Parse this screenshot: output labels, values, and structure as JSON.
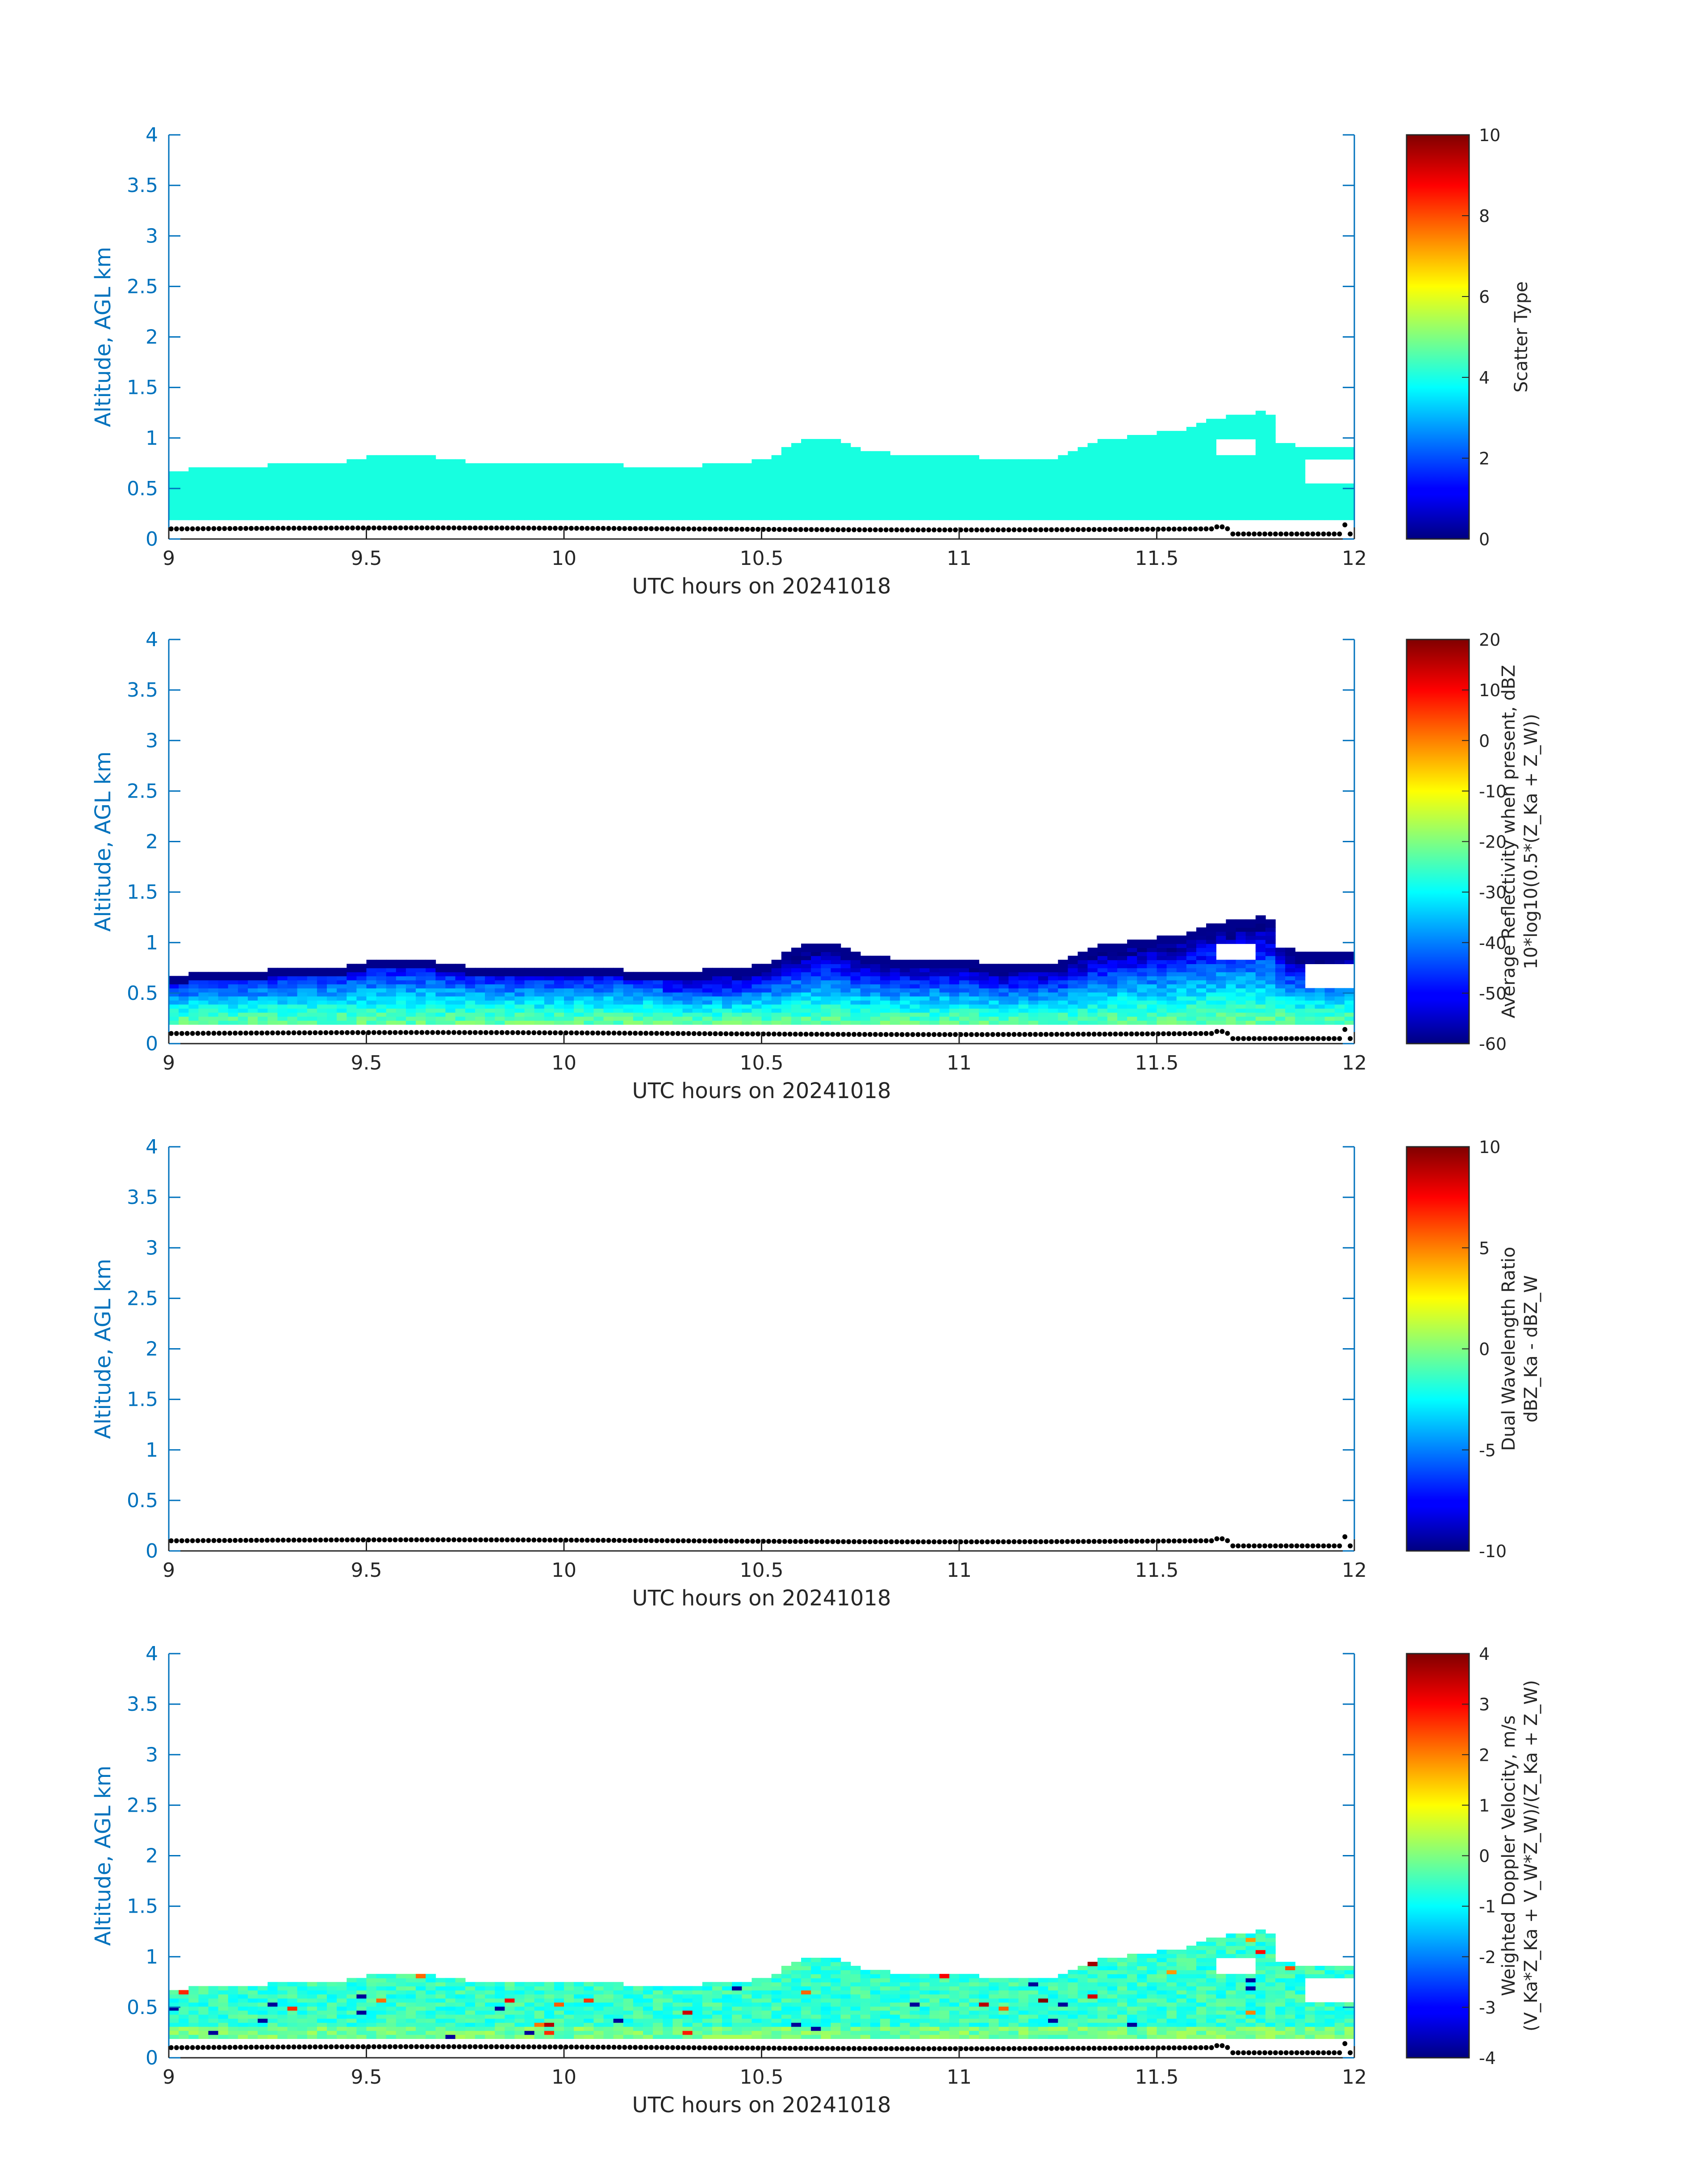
{
  "chart_data": [
    {
      "type": "heatmap",
      "xlabel": "UTC hours on 20241018",
      "ylabel": "Altitude, AGL km",
      "xlim": [
        9,
        12
      ],
      "ylim": [
        0,
        4
      ],
      "x_ticks": [
        "9",
        "9.5",
        "10",
        "10.5",
        "11",
        "11.5",
        "12"
      ],
      "y_ticks": [
        "0",
        "0.5",
        "1",
        "1.5",
        "2",
        "2.5",
        "3",
        "3.5",
        "4"
      ],
      "colorbar": {
        "label_lines": [
          "Scatter Type"
        ],
        "clim": [
          0,
          10
        ],
        "ticks": [
          "0",
          "2",
          "4",
          "6",
          "8",
          "10"
        ]
      },
      "cloud_value": 4,
      "ground_dots_km": 0.1
    },
    {
      "type": "heatmap",
      "xlabel": "UTC hours on 20241018",
      "ylabel": "Altitude, AGL km",
      "xlim": [
        9,
        12
      ],
      "ylim": [
        0,
        4
      ],
      "x_ticks": [
        "9",
        "9.5",
        "10",
        "10.5",
        "11",
        "11.5",
        "12"
      ],
      "y_ticks": [
        "0",
        "0.5",
        "1",
        "1.5",
        "2",
        "2.5",
        "3",
        "3.5",
        "4"
      ],
      "colorbar": {
        "label_lines": [
          "Average Reflectivity when present, dBZ",
          "10*log10(0.5*(Z_Ka + Z_W))"
        ],
        "clim": [
          -60,
          20
        ],
        "ticks": [
          "-60",
          "-50",
          "-40",
          "-30",
          "-20",
          "-10",
          "0",
          "10",
          "20"
        ]
      },
      "bottom_value": -22,
      "top_value": -55,
      "ground_dots_km": 0.1
    },
    {
      "type": "heatmap",
      "xlabel": "UTC hours on 20241018",
      "ylabel": "Altitude, AGL km",
      "xlim": [
        9,
        12
      ],
      "ylim": [
        0,
        4
      ],
      "x_ticks": [
        "9",
        "9.5",
        "10",
        "10.5",
        "11",
        "11.5",
        "12"
      ],
      "y_ticks": [
        "0",
        "0.5",
        "1",
        "1.5",
        "2",
        "2.5",
        "3",
        "3.5",
        "4"
      ],
      "colorbar": {
        "label_lines": [
          "Dual Wavelength Ratio",
          "dBZ_Ka - dBZ_W"
        ],
        "clim": [
          -10,
          10
        ],
        "ticks": [
          "-10",
          "-5",
          "0",
          "5",
          "10"
        ]
      },
      "ground_dots_km": 0.1
    },
    {
      "type": "heatmap",
      "xlabel": "UTC hours on 20241018",
      "ylabel": "Altitude, AGL km",
      "xlim": [
        9,
        12
      ],
      "ylim": [
        0,
        4
      ],
      "x_ticks": [
        "9",
        "9.5",
        "10",
        "10.5",
        "11",
        "11.5",
        "12"
      ],
      "y_ticks": [
        "0",
        "0.5",
        "1",
        "1.5",
        "2",
        "2.5",
        "3",
        "3.5",
        "4"
      ],
      "colorbar": {
        "label_lines": [
          "Weighted Doppler Velocity, m/s",
          "(V_Ka*Z_Ka + V_W*Z_W)/(Z_Ka + Z_W)"
        ],
        "clim": [
          -4,
          4
        ],
        "ticks": [
          "-4",
          "-3",
          "-2",
          "-1",
          "0",
          "1",
          "2",
          "3",
          "4"
        ]
      },
      "base_value": -0.6,
      "ground_dots_km": 0.1
    }
  ],
  "cloud_base_km": 0.19,
  "cloud_top_km": [
    [
      9.0,
      0.65
    ],
    [
      9.05,
      0.67
    ],
    [
      9.1,
      0.7
    ],
    [
      9.2,
      0.7
    ],
    [
      9.3,
      0.72
    ],
    [
      9.45,
      0.75
    ],
    [
      9.5,
      0.8
    ],
    [
      9.55,
      0.82
    ],
    [
      9.65,
      0.8
    ],
    [
      9.75,
      0.75
    ],
    [
      9.85,
      0.72
    ],
    [
      10.0,
      0.72
    ],
    [
      10.1,
      0.72
    ],
    [
      10.2,
      0.7
    ],
    [
      10.3,
      0.7
    ],
    [
      10.4,
      0.72
    ],
    [
      10.5,
      0.76
    ],
    [
      10.55,
      0.85
    ],
    [
      10.6,
      0.95
    ],
    [
      10.65,
      1.0
    ],
    [
      10.7,
      0.95
    ],
    [
      10.75,
      0.85
    ],
    [
      10.85,
      0.82
    ],
    [
      11.0,
      0.82
    ],
    [
      11.1,
      0.76
    ],
    [
      11.25,
      0.78
    ],
    [
      11.3,
      0.85
    ],
    [
      11.35,
      0.95
    ],
    [
      11.45,
      1.0
    ],
    [
      11.55,
      1.05
    ],
    [
      11.6,
      1.12
    ],
    [
      11.65,
      1.18
    ],
    [
      11.72,
      1.2
    ],
    [
      11.78,
      1.25
    ],
    [
      11.82,
      1.0
    ],
    [
      11.85,
      0.88
    ],
    [
      11.9,
      0.88
    ],
    [
      12.0,
      0.88
    ]
  ]
}
